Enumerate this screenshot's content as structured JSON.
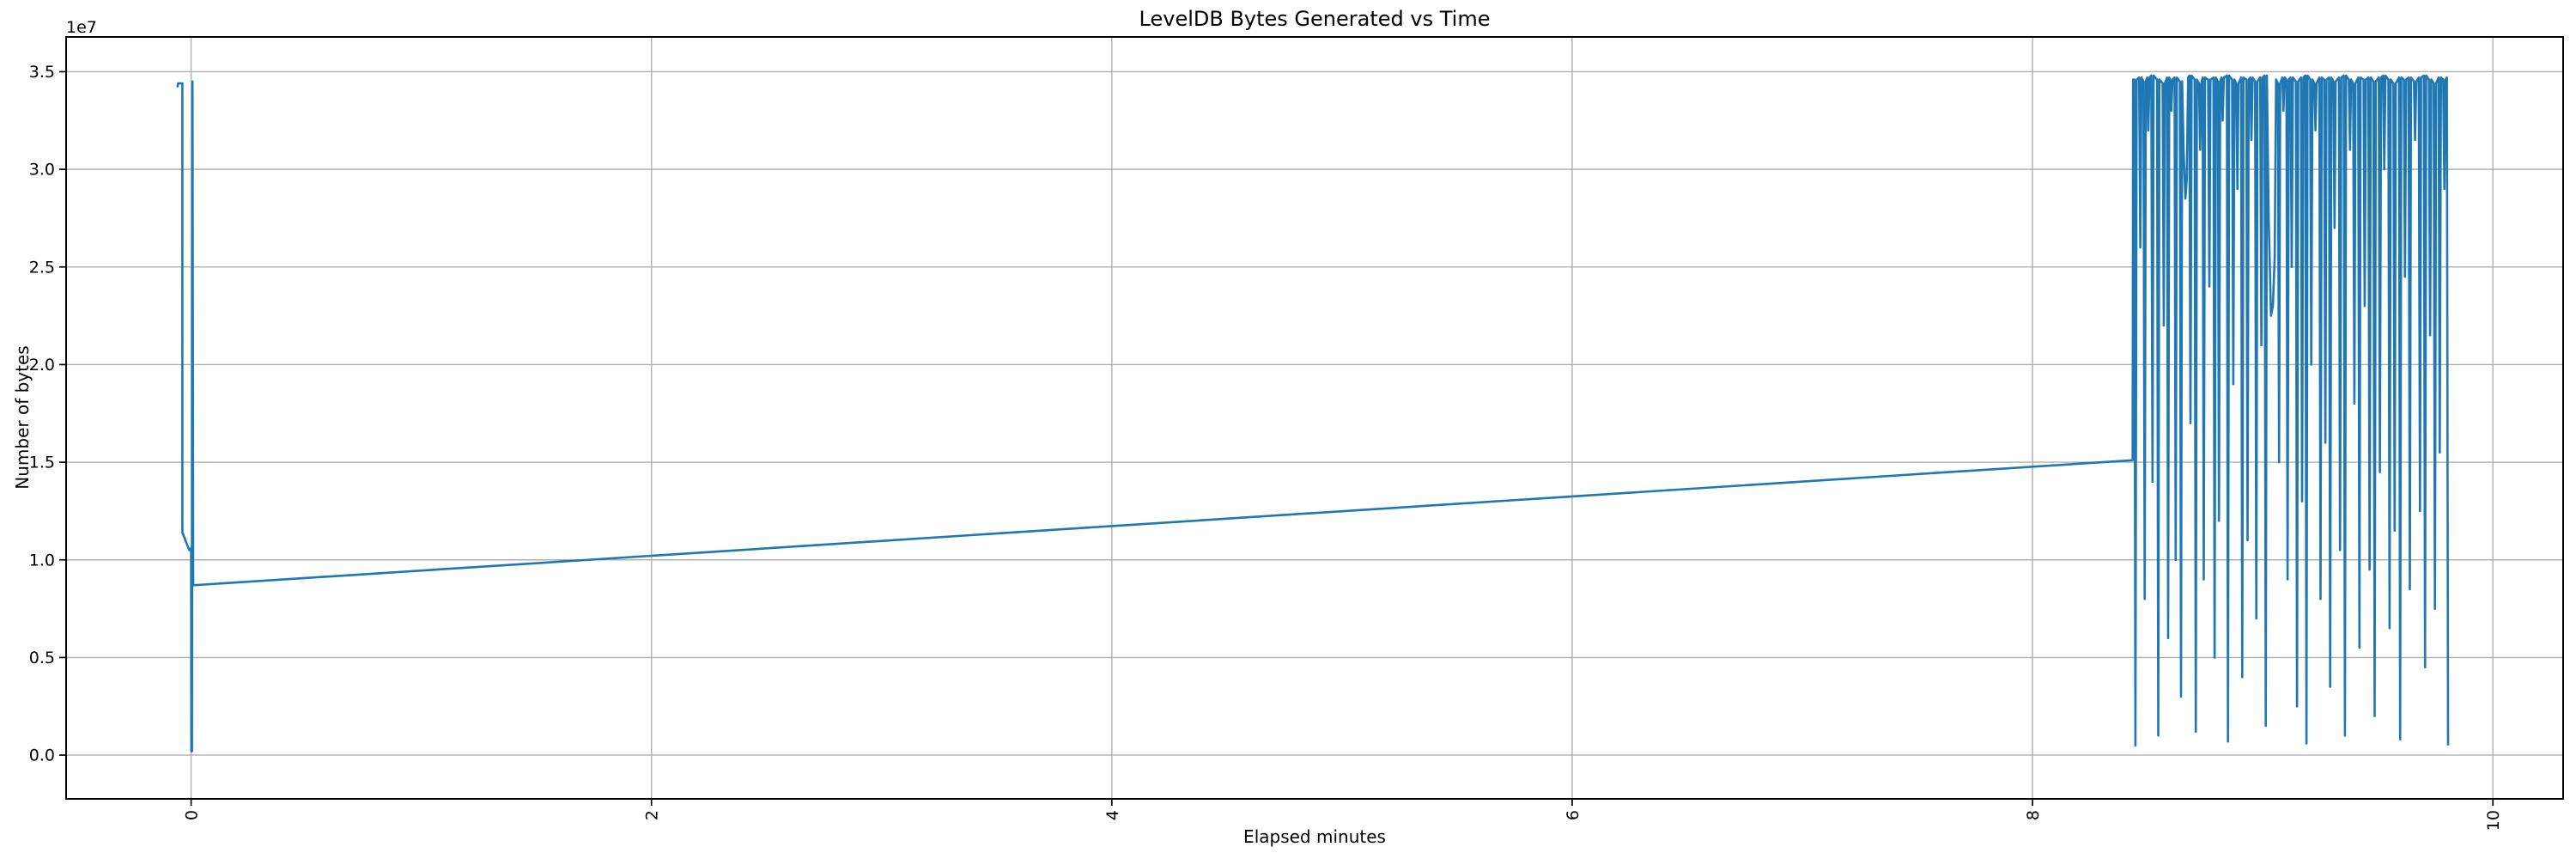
{
  "colors": {
    "line": "#1f77b4",
    "grid": "#b0b0b0",
    "spine": "#000000",
    "text": "#000000",
    "background": "#ffffff"
  },
  "chart_data": {
    "type": "line",
    "title": "LevelDB Bytes Generated vs Time",
    "xlabel": "Elapsed minutes",
    "ylabel": "Number of bytes",
    "y_offset_label": "1e7",
    "grid": true,
    "legend": null,
    "xlim": [
      -0.543,
      10.305
    ],
    "ylim": [
      -2240000,
      36780000
    ],
    "x_ticks": [
      0,
      2,
      4,
      6,
      8,
      10
    ],
    "x_tick_labels": [
      "0",
      "2",
      "4",
      "6",
      "8",
      "10"
    ],
    "x_tick_rotation": 90,
    "y_ticks": [
      0,
      5000000.0,
      10000000.0,
      15000000.0,
      20000000.0,
      25000000.0,
      30000000.0,
      35000000.0
    ],
    "y_tick_labels": [
      "0.0",
      "0.5",
      "1.0",
      "1.5",
      "2.0",
      "2.5",
      "3.0",
      "3.5"
    ],
    "points": [
      [
        -0.06,
        34200000.0
      ],
      [
        -0.056,
        34400000.0
      ],
      [
        -0.038,
        34400000.0
      ],
      [
        -0.038,
        11400000.0
      ],
      [
        -0.008,
        10500000.0
      ],
      [
        0.0,
        10600000.0
      ],
      [
        0.001,
        200000.0
      ],
      [
        0.004,
        200000.0
      ],
      [
        0.006,
        34500000.0
      ],
      [
        0.009,
        8700000.0
      ],
      [
        2.0,
        10210000.0
      ],
      [
        4.0,
        11730000.0
      ],
      [
        6.0,
        13250000.0
      ],
      [
        8.435,
        15100000.0
      ],
      [
        8.437,
        34600000.0
      ],
      [
        8.442,
        34600000.0
      ],
      [
        8.447,
        500000.0
      ],
      [
        8.452,
        34600000.0
      ],
      [
        8.463,
        34700000.0
      ],
      [
        8.468,
        26000000.0
      ],
      [
        8.473,
        34700000.0
      ],
      [
        8.482,
        34500000.0
      ],
      [
        8.487,
        8000000.0
      ],
      [
        8.492,
        34500000.0
      ],
      [
        8.498,
        34700000.0
      ],
      [
        8.503,
        32000000.0
      ],
      [
        8.508,
        34700000.0
      ],
      [
        8.516,
        34800000.0
      ],
      [
        8.521,
        14000000.0
      ],
      [
        8.526,
        34800000.0
      ],
      [
        8.541,
        34600000.0
      ],
      [
        8.546,
        1000000.0
      ],
      [
        8.551,
        34600000.0
      ],
      [
        8.565,
        34400000.0
      ],
      [
        8.57,
        22000000.0
      ],
      [
        8.575,
        34400000.0
      ],
      [
        8.584,
        34700000.0
      ],
      [
        8.589,
        6000000.0
      ],
      [
        8.594,
        34700000.0
      ],
      [
        8.598,
        34600000.0
      ],
      [
        8.603,
        33000000.0
      ],
      [
        8.608,
        34600000.0
      ],
      [
        8.617,
        34700000.0
      ],
      [
        8.622,
        10000000.0
      ],
      [
        8.627,
        34700000.0
      ],
      [
        8.64,
        34500000.0
      ],
      [
        8.645,
        3000000.0
      ],
      [
        8.65,
        34500000.0
      ],
      [
        8.656,
        31000000.0
      ],
      [
        8.664,
        28500000.0
      ],
      [
        8.67,
        29500000.0
      ],
      [
        8.676,
        34700000.0
      ],
      [
        8.681,
        34800000.0
      ],
      [
        8.686,
        17000000.0
      ],
      [
        8.691,
        34800000.0
      ],
      [
        8.704,
        34600000.0
      ],
      [
        8.709,
        1200000.0
      ],
      [
        8.714,
        34600000.0
      ],
      [
        8.723,
        34400000.0
      ],
      [
        8.728,
        31000000.0
      ],
      [
        8.733,
        34400000.0
      ],
      [
        8.739,
        34700000.0
      ],
      [
        8.744,
        9000000.0
      ],
      [
        8.749,
        34700000.0
      ],
      [
        8.763,
        34600000.0
      ],
      [
        8.768,
        24000000.0
      ],
      [
        8.773,
        34600000.0
      ],
      [
        8.786,
        34700000.0
      ],
      [
        8.791,
        5000000.0
      ],
      [
        8.796,
        34700000.0
      ],
      [
        8.805,
        34500000.0
      ],
      [
        8.81,
        12000000.0
      ],
      [
        8.815,
        34500000.0
      ],
      [
        8.821,
        34700000.0
      ],
      [
        8.826,
        32500000.0
      ],
      [
        8.831,
        34700000.0
      ],
      [
        8.844,
        34800000.0
      ],
      [
        8.849,
        700000.0
      ],
      [
        8.854,
        34800000.0
      ],
      [
        8.867,
        34600000.0
      ],
      [
        8.872,
        19000000.0
      ],
      [
        8.877,
        34600000.0
      ],
      [
        8.885,
        34400000.0
      ],
      [
        8.89,
        29000000.0
      ],
      [
        8.895,
        34400000.0
      ],
      [
        8.906,
        34700000.0
      ],
      [
        8.911,
        4000000.0
      ],
      [
        8.916,
        34700000.0
      ],
      [
        8.929,
        34600000.0
      ],
      [
        8.934,
        11000000.0
      ],
      [
        8.939,
        34600000.0
      ],
      [
        8.946,
        34700000.0
      ],
      [
        8.951,
        31500000.0
      ],
      [
        8.956,
        34700000.0
      ],
      [
        8.967,
        34500000.0
      ],
      [
        8.972,
        7000000.0
      ],
      [
        8.977,
        34500000.0
      ],
      [
        8.989,
        34700000.0
      ],
      [
        8.994,
        21000000.0
      ],
      [
        8.999,
        34700000.0
      ],
      [
        9.008,
        34800000.0
      ],
      [
        9.013,
        1500000.0
      ],
      [
        9.018,
        34800000.0
      ],
      [
        9.026,
        27500000.0
      ],
      [
        9.036,
        22500000.0
      ],
      [
        9.044,
        23000000.0
      ],
      [
        9.052,
        25500000.0
      ],
      [
        9.058,
        34600000.0
      ],
      [
        9.066,
        34400000.0
      ],
      [
        9.071,
        15000000.0
      ],
      [
        9.076,
        34400000.0
      ],
      [
        9.085,
        34700000.0
      ],
      [
        9.09,
        33000000.0
      ],
      [
        9.095,
        34700000.0
      ],
      [
        9.103,
        34600000.0
      ],
      [
        9.108,
        9000000.0
      ],
      [
        9.113,
        34600000.0
      ],
      [
        9.121,
        34700000.0
      ],
      [
        9.126,
        25000000.0
      ],
      [
        9.131,
        34700000.0
      ],
      [
        9.144,
        34500000.0
      ],
      [
        9.149,
        2500000.0
      ],
      [
        9.154,
        34500000.0
      ],
      [
        9.166,
        34700000.0
      ],
      [
        9.171,
        13000000.0
      ],
      [
        9.176,
        34700000.0
      ],
      [
        9.185,
        34800000.0
      ],
      [
        9.19,
        600000.0
      ],
      [
        9.195,
        34800000.0
      ],
      [
        9.206,
        34600000.0
      ],
      [
        9.211,
        20000000.0
      ],
      [
        9.216,
        34600000.0
      ],
      [
        9.224,
        34400000.0
      ],
      [
        9.229,
        32000000.0
      ],
      [
        9.234,
        34400000.0
      ],
      [
        9.246,
        34700000.0
      ],
      [
        9.251,
        8000000.0
      ],
      [
        9.256,
        34700000.0
      ],
      [
        9.267,
        34600000.0
      ],
      [
        9.272,
        16000000.0
      ],
      [
        9.277,
        34600000.0
      ],
      [
        9.288,
        34700000.0
      ],
      [
        9.293,
        3500000.0
      ],
      [
        9.298,
        34700000.0
      ],
      [
        9.307,
        34500000.0
      ],
      [
        9.312,
        27000000.0
      ],
      [
        9.317,
        34500000.0
      ],
      [
        9.331,
        34700000.0
      ],
      [
        9.336,
        10500000.0
      ],
      [
        9.341,
        34700000.0
      ],
      [
        9.352,
        34800000.0
      ],
      [
        9.357,
        1000000.0
      ],
      [
        9.362,
        34800000.0
      ],
      [
        9.374,
        34600000.0
      ],
      [
        9.379,
        31000000.0
      ],
      [
        9.384,
        34600000.0
      ],
      [
        9.393,
        34400000.0
      ],
      [
        9.398,
        18000000.0
      ],
      [
        9.403,
        34400000.0
      ],
      [
        9.415,
        34700000.0
      ],
      [
        9.42,
        5500000.0
      ],
      [
        9.425,
        34700000.0
      ],
      [
        9.438,
        34600000.0
      ],
      [
        9.443,
        23000000.0
      ],
      [
        9.448,
        34600000.0
      ],
      [
        9.459,
        34700000.0
      ],
      [
        9.464,
        9500000.0
      ],
      [
        9.469,
        34700000.0
      ],
      [
        9.481,
        34500000.0
      ],
      [
        9.486,
        2000000.0
      ],
      [
        9.491,
        34500000.0
      ],
      [
        9.504,
        34700000.0
      ],
      [
        9.509,
        14500000.0
      ],
      [
        9.514,
        34700000.0
      ],
      [
        9.523,
        34800000.0
      ],
      [
        9.528,
        30000000.0
      ],
      [
        9.533,
        34800000.0
      ],
      [
        9.546,
        34600000.0
      ],
      [
        9.551,
        6500000.0
      ],
      [
        9.556,
        34600000.0
      ],
      [
        9.568,
        34400000.0
      ],
      [
        9.573,
        11500000.0
      ],
      [
        9.578,
        34400000.0
      ],
      [
        9.592,
        34700000.0
      ],
      [
        9.597,
        800000.0
      ],
      [
        9.602,
        34700000.0
      ],
      [
        9.613,
        34600000.0
      ],
      [
        9.618,
        24500000.0
      ],
      [
        9.623,
        34600000.0
      ],
      [
        9.634,
        34700000.0
      ],
      [
        9.639,
        8500000.0
      ],
      [
        9.644,
        34700000.0
      ],
      [
        9.657,
        34500000.0
      ],
      [
        9.662,
        31500000.0
      ],
      [
        9.667,
        34500000.0
      ],
      [
        9.678,
        34700000.0
      ],
      [
        9.683,
        12500000.0
      ],
      [
        9.688,
        34700000.0
      ],
      [
        9.7,
        34800000.0
      ],
      [
        9.705,
        4500000.0
      ],
      [
        9.71,
        34800000.0
      ],
      [
        9.722,
        34600000.0
      ],
      [
        9.727,
        21500000.0
      ],
      [
        9.732,
        34600000.0
      ],
      [
        9.743,
        34400000.0
      ],
      [
        9.748,
        7500000.0
      ],
      [
        9.753,
        34400000.0
      ],
      [
        9.764,
        34700000.0
      ],
      [
        9.769,
        15500000.0
      ],
      [
        9.774,
        34700000.0
      ],
      [
        9.784,
        34600000.0
      ],
      [
        9.789,
        29000000.0
      ],
      [
        9.794,
        34600000.0
      ],
      [
        9.8,
        34700000.0
      ],
      [
        9.805,
        500000.0
      ]
    ]
  }
}
